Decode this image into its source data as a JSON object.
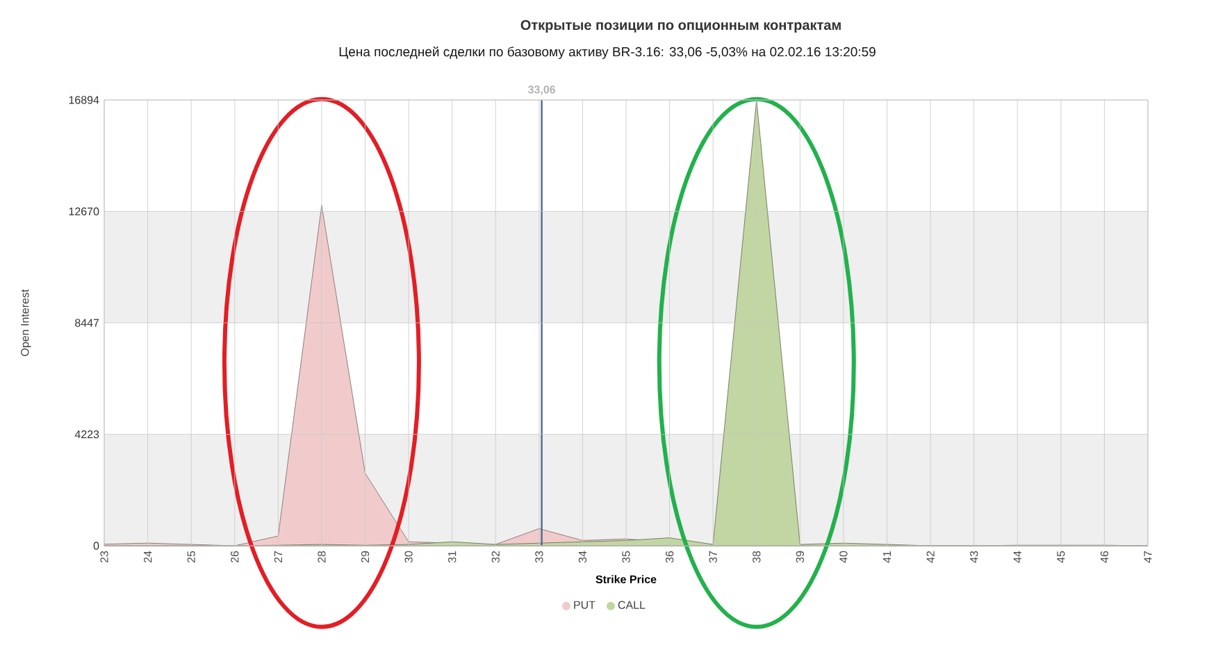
{
  "chart_data": {
    "type": "area",
    "title": "Открытые позиции по опционным контрактам",
    "subtitle": "Цена последней сделки по базовому активу BR-3.16: 33,06 -5,03% на 02.02.16 13:20:59",
    "xlabel": "Strike Price",
    "ylabel": "Open Interest",
    "x": [
      23,
      24,
      25,
      26,
      27,
      28,
      29,
      30,
      31,
      32,
      33,
      34,
      35,
      36,
      37,
      38,
      39,
      40,
      41,
      42,
      43,
      44,
      45,
      46,
      47
    ],
    "xlim": [
      23,
      47
    ],
    "xticks": [
      23,
      24,
      25,
      26,
      27,
      28,
      29,
      30,
      31,
      32,
      33,
      34,
      35,
      36,
      37,
      38,
      39,
      40,
      41,
      42,
      43,
      44,
      45,
      46,
      47
    ],
    "ylim": [
      0,
      16894
    ],
    "yticks": [
      0,
      4223,
      8447,
      12670,
      16894
    ],
    "series": [
      {
        "name": "PUT",
        "color": "#f1cbcb",
        "values": [
          60,
          100,
          50,
          0,
          370,
          12900,
          2750,
          150,
          100,
          50,
          650,
          200,
          260,
          null,
          0,
          0,
          0,
          50,
          0,
          0,
          0,
          0,
          0,
          0,
          0
        ]
      },
      {
        "name": "CALL",
        "color": "#c2d6a3",
        "values": [
          0,
          0,
          0,
          0,
          20,
          50,
          20,
          50,
          150,
          50,
          100,
          150,
          200,
          300,
          50,
          16894,
          50,
          100,
          50,
          0,
          0,
          20,
          20,
          20,
          0
        ]
      }
    ],
    "ref_lines": [
      {
        "axis": "x",
        "value": 33.06,
        "label": "33,06",
        "color": "#4a6a8f"
      }
    ],
    "bands": [
      {
        "axis": "y",
        "from": 0,
        "to": 4223,
        "color": "#efefef"
      },
      {
        "axis": "y",
        "from": 8447,
        "to": 12670,
        "color": "#efefef"
      }
    ],
    "grid": true,
    "legend": "bottom",
    "marker": "none"
  }
}
